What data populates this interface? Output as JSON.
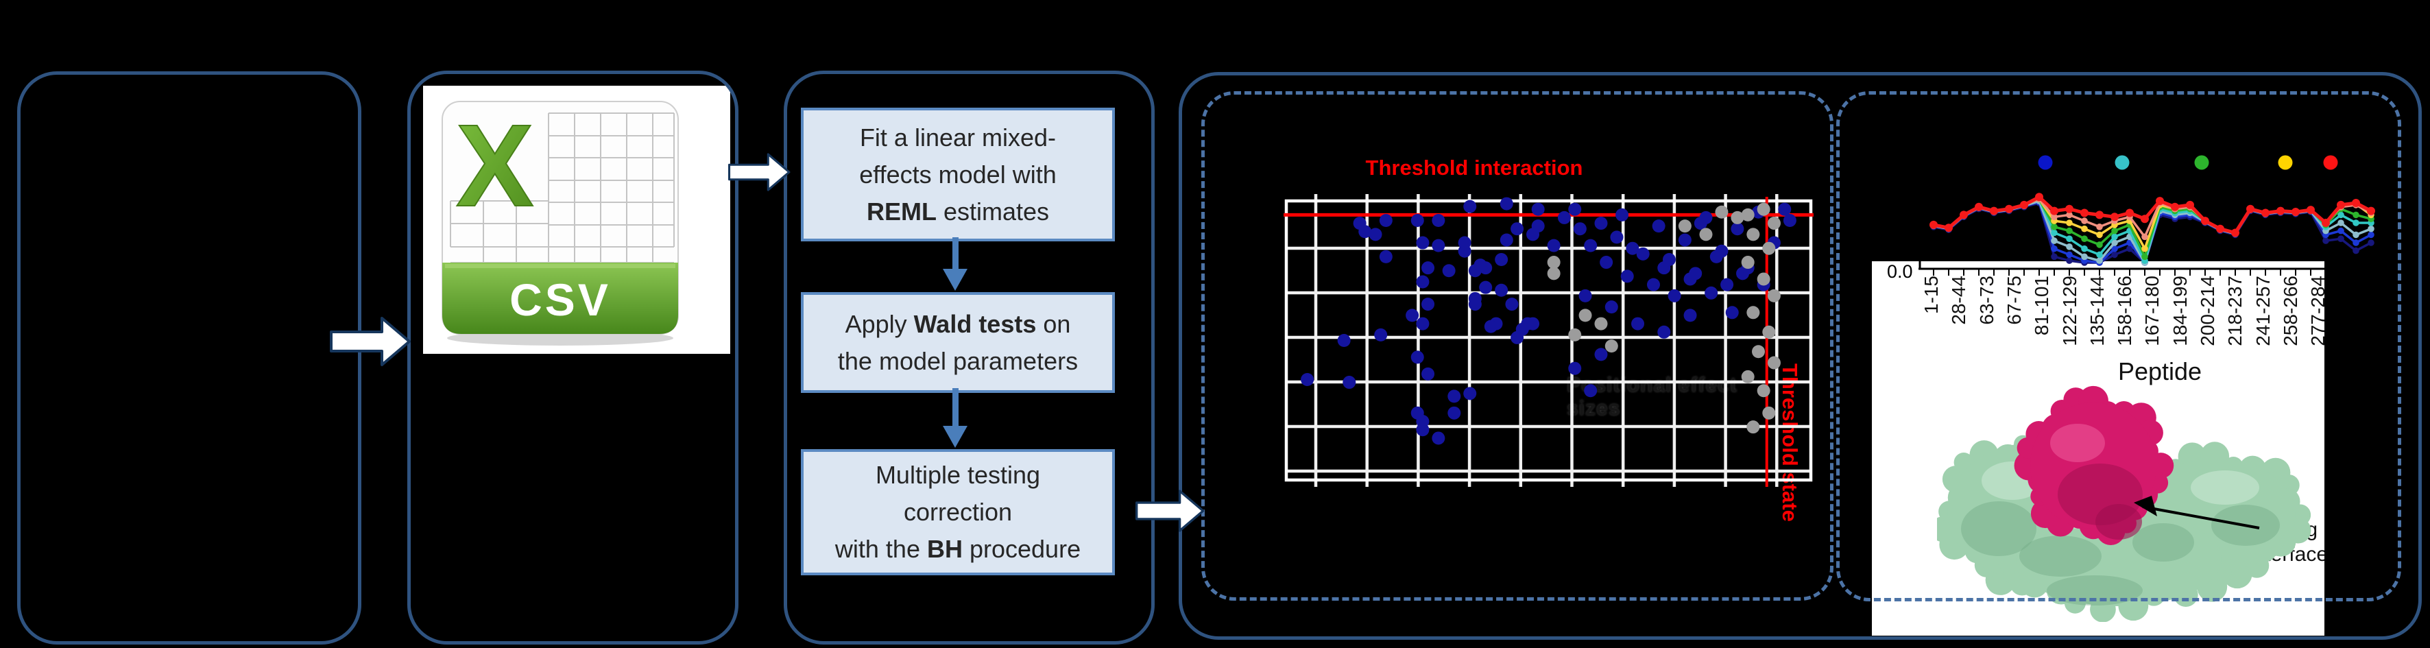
{
  "figure": {
    "kind": "scientific-workflow-figure"
  },
  "colors": {
    "background": "#000000",
    "panel_border": "#2f5380",
    "dashed_border": "#4c73a6",
    "step_fill": "#dce6f2",
    "step_border": "#5b8ac2",
    "step_text": "#262626",
    "flow_arrow": "#4a7ebb",
    "block_arrow_fill": "#ffffff",
    "block_arrow_border": "#16365c",
    "threshold_red": "#fe0000",
    "scatter_blue": "#14149e",
    "scatter_gray": "#9c9c9c",
    "grid_white": "#f0f0f0",
    "csv_green": "#63a52c",
    "protein_green": "#9fd0ae",
    "protein_magenta": "#d4196b"
  },
  "flow": {
    "steps": [
      {
        "lines": [
          [
            {
              "t": "Fit a linear mixed-"
            }
          ],
          [
            {
              "t": "effects model with"
            }
          ],
          [
            {
              "t": "REML",
              "b": true
            },
            {
              "t": " estimates"
            }
          ]
        ]
      },
      {
        "lines": [
          [
            {
              "t": "Apply "
            },
            {
              "t": "Wald tests",
              "b": true
            },
            {
              "t": " on"
            }
          ],
          [
            {
              "t": "the model parameters"
            }
          ]
        ]
      },
      {
        "lines": [
          [
            {
              "t": "Multiple testing"
            }
          ],
          [
            {
              "t": "correction"
            }
          ],
          [
            {
              "t": "with the "
            },
            {
              "t": "BH",
              "b": true
            },
            {
              "t": " procedure"
            }
          ]
        ]
      }
    ]
  },
  "csv_icon": {
    "letter": "X",
    "format_label": "CSV"
  },
  "scatter": {
    "title": "Threshold interaction",
    "side_label": "Threshold state",
    "faint_label": "Positional effect sizes"
  },
  "peptide": {
    "y_tick": "0.0",
    "xlabel": "Peptide",
    "annotation": [
      "Binding",
      "interface"
    ]
  },
  "chart_data": [
    {
      "id": "threshold-scatter",
      "type": "scatter",
      "title": "Threshold interaction",
      "axis_tick_labels_visible": false,
      "grid": {
        "cols": 10,
        "rows": 7,
        "grid_on": true
      },
      "threshold_lines": {
        "horizontal_label": "Threshold interaction",
        "horizontal_y_frac": 0.05,
        "vertical_label": "Threshold state",
        "vertical_x_frac": 0.916
      },
      "units": "percent of plot area; y measured downward from top edge",
      "series": [
        {
          "name": "points-blue",
          "color": "#14149e",
          "points": [
            [
              14,
              8
            ],
            [
              19,
              7
            ],
            [
              15,
              11
            ],
            [
              17,
              12
            ],
            [
              35,
              2
            ],
            [
              42,
              1
            ],
            [
              25,
              7
            ],
            [
              29,
              7
            ],
            [
              26,
              15
            ],
            [
              29,
              16
            ],
            [
              34,
              15
            ],
            [
              34,
              18
            ],
            [
              19,
              20
            ],
            [
              27,
              24
            ],
            [
              31,
              25
            ],
            [
              26,
              29
            ],
            [
              36,
              25
            ],
            [
              37,
              23
            ],
            [
              38,
              24
            ],
            [
              41,
              21
            ],
            [
              47,
              12
            ],
            [
              42,
              14
            ],
            [
              44,
              10
            ],
            [
              48,
              9
            ],
            [
              48,
              3
            ],
            [
              51,
              16
            ],
            [
              38,
              31
            ],
            [
              41,
              32
            ],
            [
              43,
              37
            ],
            [
              36,
              35
            ],
            [
              36,
              37
            ],
            [
              40,
              44
            ],
            [
              39,
              45
            ],
            [
              46,
              44
            ],
            [
              47,
              44
            ],
            [
              45,
              46
            ],
            [
              44,
              49
            ],
            [
              27,
              37
            ],
            [
              18,
              48
            ],
            [
              11,
              50
            ],
            [
              24,
              41
            ],
            [
              26,
              44
            ],
            [
              25,
              56
            ],
            [
              27,
              62
            ],
            [
              4,
              64
            ],
            [
              12,
              65
            ],
            [
              32,
              70
            ],
            [
              35,
              69
            ],
            [
              25,
              76
            ],
            [
              26,
              79
            ],
            [
              26,
              82
            ],
            [
              29,
              85
            ],
            [
              32,
              76
            ],
            [
              53,
              6
            ],
            [
              55,
              3
            ],
            [
              56,
              10
            ],
            [
              58,
              16
            ],
            [
              60,
              8
            ],
            [
              61,
              22
            ],
            [
              63,
              13
            ],
            [
              64,
              5
            ],
            [
              65,
              27
            ],
            [
              66,
              17
            ],
            [
              68,
              19
            ],
            [
              70,
              30
            ],
            [
              71,
              9
            ],
            [
              72,
              24
            ],
            [
              73,
              21
            ],
            [
              74,
              34
            ],
            [
              76,
              14
            ],
            [
              77,
              28
            ],
            [
              78,
              26
            ],
            [
              79,
              8
            ],
            [
              80,
              6
            ],
            [
              81,
              33
            ],
            [
              82,
              20
            ],
            [
              83,
              18
            ],
            [
              84,
              30
            ],
            [
              85,
              40
            ],
            [
              86,
              10
            ],
            [
              87,
              26
            ],
            [
              88,
              24
            ],
            [
              90,
              4
            ],
            [
              91,
              30
            ],
            [
              93,
              15
            ],
            [
              95,
              3
            ],
            [
              96,
              7
            ],
            [
              57,
              34
            ],
            [
              62,
              38
            ],
            [
              67,
              44
            ],
            [
              72,
              47
            ],
            [
              77,
              41
            ],
            [
              60,
              55
            ],
            [
              55,
              60
            ],
            [
              58,
              68
            ]
          ]
        },
        {
          "name": "points-gray",
          "color": "#9c9c9c",
          "points": [
            [
              51,
              22
            ],
            [
              51,
              26
            ],
            [
              57,
              41
            ],
            [
              60,
              44
            ],
            [
              55,
              48
            ],
            [
              62,
              52
            ],
            [
              83,
              4
            ],
            [
              86,
              6
            ],
            [
              88,
              5
            ],
            [
              91,
              3
            ],
            [
              93,
              8
            ],
            [
              89,
              12
            ],
            [
              92,
              17
            ],
            [
              88,
              22
            ],
            [
              91,
              28
            ],
            [
              93,
              34
            ],
            [
              89,
              40
            ],
            [
              92,
              47
            ],
            [
              90,
              54
            ],
            [
              93,
              58
            ],
            [
              88,
              63
            ],
            [
              91,
              68
            ],
            [
              92,
              76
            ],
            [
              89,
              81
            ],
            [
              80,
              12
            ],
            [
              76,
              9
            ]
          ]
        }
      ]
    },
    {
      "id": "peptide-uptake-lines",
      "type": "line",
      "xlabel": "Peptide",
      "x_tick_labels": [
        "1-15",
        "28-44",
        "63-73",
        "67-75",
        "81-101",
        "122-129",
        "135-144",
        "158-166",
        "167-180",
        "184-199",
        "200-214",
        "218-237",
        "241-257",
        "258-266",
        "277-284"
      ],
      "visible_y_tick": "0.0",
      "legend_position": "top",
      "legend_dot_colors": [
        "#0a16c8",
        "#37c2c8",
        "#2db52d",
        "#ffd400",
        "#ff1414"
      ],
      "ylim_note": "values on 0-100 relative uptake scale; only the 0.0 tick is visible",
      "series": [
        {
          "name": "navy",
          "color": "#17177d",
          "values": [
            36,
            33,
            46,
            54,
            50,
            52,
            56,
            60,
            6,
            2,
            0,
            0,
            8,
            14,
            0,
            48,
            44,
            46,
            40,
            32,
            28,
            52,
            48,
            50,
            49,
            51,
            22,
            24,
            12,
            20
          ]
        },
        {
          "name": "blue",
          "color": "#1c39d6",
          "values": [
            37,
            34,
            47,
            55,
            51,
            53,
            57,
            61,
            14,
            8,
            2,
            0,
            14,
            20,
            0,
            50,
            46,
            48,
            41,
            33,
            29,
            53,
            49,
            51,
            50,
            52,
            28,
            32,
            20,
            28
          ]
        },
        {
          "name": "steel",
          "color": "#8fbecd",
          "values": [
            37,
            34,
            47,
            55,
            51,
            53,
            57,
            62,
            22,
            16,
            6,
            2,
            20,
            26,
            0,
            52,
            48,
            50,
            41,
            33,
            29,
            53,
            49,
            51,
            50,
            52,
            32,
            40,
            28,
            34
          ]
        },
        {
          "name": "cyan",
          "color": "#32c8c4",
          "values": [
            38,
            35,
            48,
            56,
            52,
            54,
            58,
            64,
            30,
            24,
            14,
            8,
            26,
            32,
            2,
            54,
            50,
            52,
            42,
            34,
            30,
            54,
            50,
            52,
            51,
            53,
            36,
            48,
            40,
            40
          ]
        },
        {
          "name": "green",
          "color": "#2db52d",
          "values": [
            38,
            35,
            48,
            56,
            52,
            54,
            58,
            64,
            36,
            32,
            24,
            18,
            32,
            38,
            6,
            56,
            52,
            54,
            42,
            34,
            30,
            54,
            50,
            52,
            51,
            53,
            38,
            54,
            48,
            44
          ]
        },
        {
          "name": "yellow",
          "color": "#ffd23c",
          "values": [
            38,
            35,
            48,
            56,
            52,
            54,
            58,
            64,
            42,
            40,
            34,
            28,
            38,
            42,
            14,
            58,
            54,
            56,
            42,
            34,
            30,
            54,
            50,
            52,
            51,
            53,
            40,
            57,
            59,
            48
          ]
        },
        {
          "name": "salmon",
          "color": "#f08f7e",
          "values": [
            38,
            35,
            48,
            56,
            52,
            54,
            58,
            64,
            46,
            48,
            42,
            36,
            42,
            46,
            26,
            60,
            54,
            56,
            42,
            34,
            30,
            54,
            50,
            52,
            51,
            53,
            40,
            56,
            58,
            50
          ]
        },
        {
          "name": "red",
          "color": "#f51a1a",
          "values": [
            38,
            35,
            48,
            56,
            52,
            54,
            58,
            66,
            52,
            54,
            50,
            48,
            46,
            50,
            44,
            62,
            56,
            58,
            42,
            34,
            30,
            54,
            50,
            52,
            51,
            53,
            40,
            58,
            60,
            52
          ]
        }
      ]
    }
  ]
}
